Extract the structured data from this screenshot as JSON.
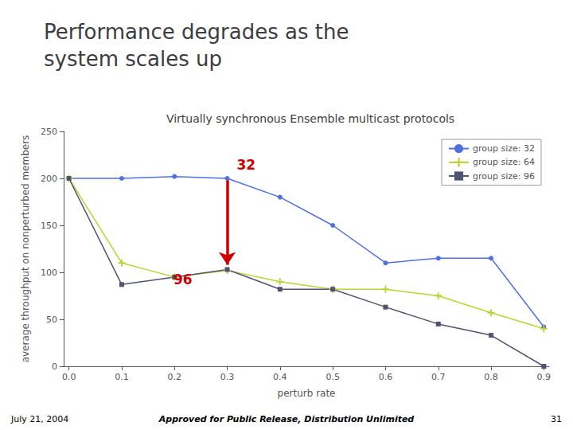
{
  "chart_data": {
    "type": "line",
    "title": "Virtually synchronous Ensemble multicast protocols",
    "subtitle": "Performance degrades as the\nsystem scales up",
    "xlabel": "perturb rate",
    "ylabel": "average throughput on nonperturbed members",
    "x": [
      0,
      0.1,
      0.2,
      0.3,
      0.4,
      0.5,
      0.6,
      0.7,
      0.8,
      0.9
    ],
    "series": [
      {
        "name": "group size: 32",
        "marker": "circle",
        "values": [
          200,
          200,
          202,
          200,
          180,
          150,
          110,
          115,
          115,
          42
        ]
      },
      {
        "name": "group size: 64",
        "marker": "plus",
        "values": [
          200,
          110,
          95,
          102,
          90,
          82,
          82,
          75,
          57,
          40
        ]
      },
      {
        "name": "group size: 96",
        "marker": "square",
        "values": [
          200,
          87,
          95,
          103,
          82,
          82,
          63,
          45,
          33,
          0
        ]
      }
    ],
    "xlim": [
      -0.01,
      0.91
    ],
    "xticks": [
      {
        "value": 0,
        "label": "0.0"
      },
      0.1,
      0.2,
      0.3,
      0.4,
      0.5,
      0.6,
      0.7,
      0.8,
      0.9
    ],
    "ylim": [
      0,
      250
    ],
    "yticks": [
      0,
      50,
      100,
      150,
      200,
      250
    ],
    "grid": false,
    "legend": "upper right",
    "annotations": [
      {
        "arrow_from": [
          0.3,
          198
        ],
        "arrow_to": [
          0.3,
          108
        ],
        "color": "#cc0000"
      },
      {
        "text": "32",
        "x": 0.315,
        "y": 207,
        "color": "#cc0000"
      },
      {
        "text": "96",
        "x": 0.195,
        "y": 85,
        "color": "#cc0000"
      },
      {
        "text": "July 21, 2004"
      },
      {
        "text": "Approved for Public Release, Distribution Unlimited"
      },
      {
        "text": "31"
      }
    ]
  }
}
